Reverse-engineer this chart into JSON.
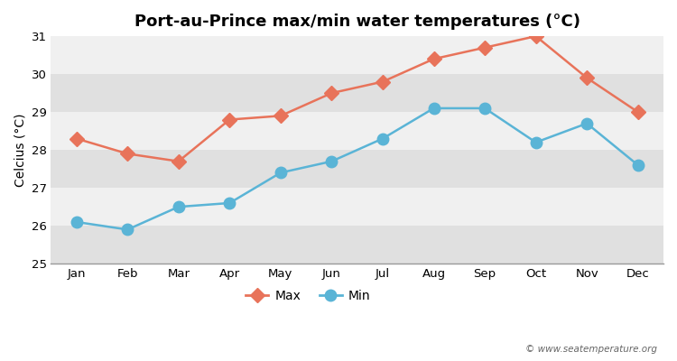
{
  "title": "Port-au-Prince max/min water temperatures (°C)",
  "ylabel": "Celcius (°C)",
  "months": [
    "Jan",
    "Feb",
    "Mar",
    "Apr",
    "May",
    "Jun",
    "Jul",
    "Aug",
    "Sep",
    "Oct",
    "Nov",
    "Dec"
  ],
  "max_values": [
    28.3,
    27.9,
    27.7,
    28.8,
    28.9,
    29.5,
    29.8,
    30.4,
    30.7,
    31.0,
    29.9,
    29.0
  ],
  "min_values": [
    26.1,
    25.9,
    26.5,
    26.6,
    27.4,
    27.7,
    28.3,
    29.1,
    29.1,
    28.2,
    28.7,
    27.6
  ],
  "max_color": "#e8735a",
  "min_color": "#5ab4d6",
  "background_color": "#ffffff",
  "band_light": "#f0f0f0",
  "band_dark": "#e0e0e0",
  "ylim": [
    25,
    31
  ],
  "yticks": [
    25,
    26,
    27,
    28,
    29,
    30,
    31
  ],
  "legend_labels": [
    "Max",
    "Min"
  ],
  "watermark": "© www.seatemperature.org",
  "title_fontsize": 13,
  "label_fontsize": 10,
  "tick_fontsize": 9.5,
  "marker_size_max": 8,
  "marker_size_min": 9
}
